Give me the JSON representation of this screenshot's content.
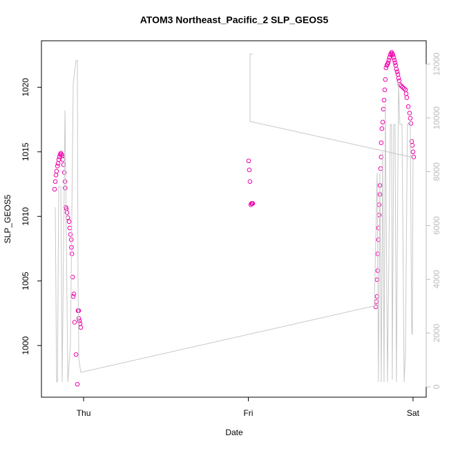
{
  "chart_data": {
    "type": "scatter",
    "title": "ATOM3 Northeast_Pacific_2 SLP_GEOS5",
    "x_label": "Date",
    "y_label": "SLP_GEOS5",
    "xlim": [
      -0.256,
      2.08
    ],
    "xticks": [
      {
        "value": 0,
        "label": "Thu"
      },
      {
        "value": 1,
        "label": "Fri"
      },
      {
        "value": 2,
        "label": "Sat"
      }
    ],
    "ylim": [
      996.0,
      1023.6
    ],
    "yticks": [
      1000,
      1005,
      1010,
      1015,
      1020
    ],
    "y2lim": [
      -385,
      12870
    ],
    "y2ticks": [
      0,
      2000,
      4000,
      6000,
      8000,
      10000,
      12000
    ],
    "series": [
      {
        "type": "scatter",
        "color": "#ee00aa",
        "x": [
          -0.176,
          -0.172,
          -0.168,
          -0.164,
          -0.159,
          -0.155,
          -0.151,
          -0.147,
          -0.143,
          -0.138,
          -0.134,
          -0.13,
          -0.126,
          -0.122,
          -0.117,
          -0.113,
          -0.112,
          -0.109,
          -0.105,
          -0.101,
          -0.096,
          -0.088,
          -0.084,
          -0.08,
          -0.075,
          -0.074,
          -0.071,
          -0.067,
          -0.063,
          -0.059,
          -0.055,
          -0.046,
          -0.038,
          -0.034,
          -0.029,
          -0.025,
          -0.021,
          -0.017,
          -0.03,
          1.002,
          1.006,
          1.01,
          1.015,
          1.019,
          1.023,
          1.027,
          1.774,
          1.778,
          1.782,
          1.782,
          1.786,
          1.786,
          1.79,
          1.79,
          1.795,
          1.795,
          1.799,
          1.799,
          1.803,
          1.807,
          1.807,
          1.811,
          1.816,
          1.82,
          1.824,
          1.828,
          1.832,
          1.836,
          1.841,
          1.845,
          1.849,
          1.853,
          1.857,
          1.862,
          1.866,
          1.87,
          1.874,
          1.878,
          1.883,
          1.887,
          1.891,
          1.895,
          1.899,
          1.904,
          1.908,
          1.912,
          1.916,
          1.92,
          1.929,
          1.937,
          1.946,
          1.954,
          1.958,
          1.962,
          1.971,
          1.979,
          1.983,
          1.987,
          1.992,
          1.996,
          2.0,
          2.004
        ],
        "values": [
          1012.1,
          1012.7,
          1013.2,
          1013.5,
          1013.9,
          1014.1,
          1014.4,
          1014.6,
          1014.8,
          1014.9,
          1014.8,
          1014.7,
          1014.4,
          1014.0,
          1013.4,
          1012.7,
          1012.2,
          1010.7,
          1010.6,
          1010.3,
          1009.9,
          1009.6,
          1009.1,
          1008.6,
          1008.2,
          1007.6,
          1007.1,
          1005.3,
          1003.8,
          1004.0,
          1001.8,
          999.3,
          997.0,
          1002.7,
          1002.1,
          1001.9,
          1001.7,
          1001.4,
          1002.7,
          1014.3,
          1013.6,
          1012.7,
          1010.9,
          1011.0,
          1011.0,
          1011.0,
          1003.0,
          1003.4,
          1003.8,
          1005.1,
          1005.8,
          1007.1,
          1008.2,
          1009.1,
          1010.1,
          1010.9,
          1011.7,
          1012.4,
          1013.7,
          1014.6,
          1015.7,
          1016.8,
          1017.3,
          1018.3,
          1019.0,
          1019.8,
          1020.6,
          1021.5,
          1021.7,
          1021.8,
          1021.9,
          1022.1,
          1022.3,
          1022.5,
          1022.6,
          1022.7,
          1022.6,
          1022.5,
          1022.3,
          1022.1,
          1021.9,
          1021.7,
          1021.4,
          1021.2,
          1021.0,
          1020.7,
          1020.5,
          1020.2,
          1020.1,
          1020.0,
          1019.9,
          1019.8,
          1019.5,
          1019.2,
          1018.5,
          1018.0,
          1017.6,
          1017.2,
          1015.8,
          1015.5,
          1015.0,
          1014.6
        ]
      },
      {
        "type": "line",
        "axis": "y2",
        "color": "#c8c8c8",
        "x": [
          -0.172,
          -0.164,
          -0.159,
          -0.151,
          -0.138,
          -0.13,
          -0.113,
          -0.096,
          -0.08,
          -0.063,
          -0.046,
          -0.038,
          -0.034,
          -0.029,
          -0.017,
          1.765,
          1.782,
          1.79,
          1.799,
          1.807,
          1.816,
          1.824,
          1.832,
          1.845,
          1.862,
          1.87,
          1.874,
          1.883,
          1.891,
          1.899,
          1.912,
          1.92,
          1.933,
          1.946,
          1.954,
          1.966,
          1.983,
          1.992,
          1.996,
          2.0,
          1.01,
          1.01,
          1.027
        ],
        "values": [
          6680,
          180,
          180,
          7450,
          7450,
          180,
          10280,
          180,
          1540,
          11310,
          12130,
          12150,
          4110,
          1030,
          540,
          3010,
          7960,
          180,
          7960,
          180,
          8740,
          180,
          10530,
          180,
          9760,
          9760,
          260,
          9760,
          9760,
          180,
          11310,
          9760,
          9760,
          180,
          1280,
          9760,
          9890,
          2060,
          1930,
          8530,
          9870,
          12380,
          12380
        ]
      }
    ]
  }
}
